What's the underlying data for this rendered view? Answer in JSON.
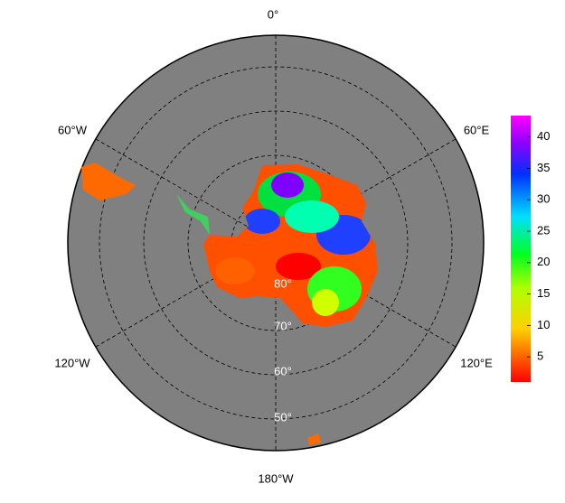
{
  "map": {
    "longitude_labels": [
      "0°",
      "60°E",
      "120°E",
      "180°W",
      "120°W",
      "60°W"
    ],
    "latitude_labels": [
      "80°",
      "70°",
      "60°",
      "50°"
    ],
    "colorbar": {
      "lim": [
        1,
        43.4
      ],
      "ticks": [
        5,
        10,
        15,
        20,
        25,
        30,
        35,
        40
      ]
    }
  }
}
